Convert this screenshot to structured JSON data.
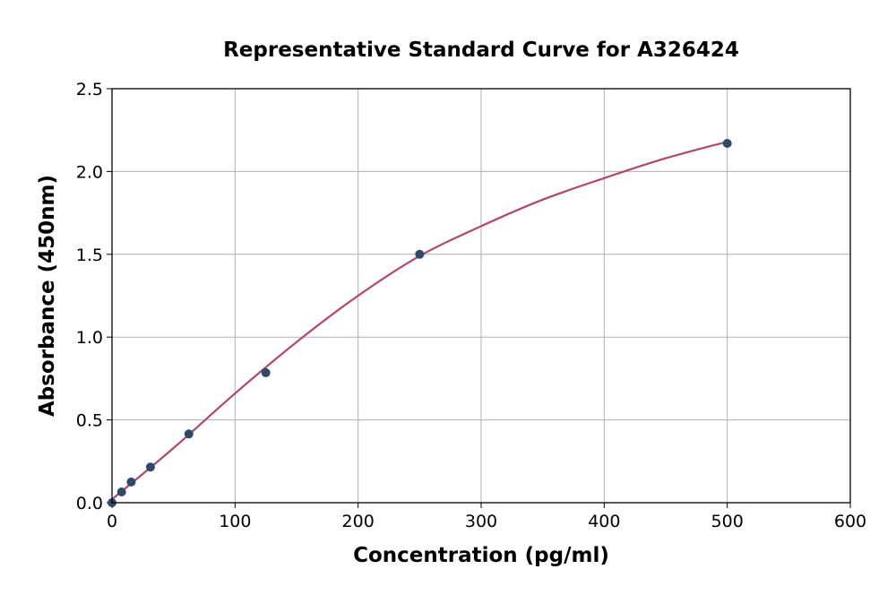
{
  "chart_data": {
    "type": "scatter",
    "title": "Representative Standard Curve for A326424",
    "xlabel": "Concentration (pg/ml)",
    "ylabel": "Absorbance (450nm)",
    "xlim": [
      0,
      600
    ],
    "ylim": [
      0,
      2.5
    ],
    "xticks": [
      "0",
      "100",
      "200",
      "300",
      "400",
      "500",
      "600"
    ],
    "yticks": [
      "0.0",
      "0.5",
      "1.0",
      "1.5",
      "2.0",
      "2.5"
    ],
    "grid": true,
    "legend": "none",
    "points": {
      "x": [
        0,
        7.8,
        15.6,
        31.25,
        62.5,
        125,
        250,
        500
      ],
      "y": [
        0.0,
        0.065,
        0.125,
        0.215,
        0.415,
        0.785,
        1.5,
        2.17
      ],
      "color": "#2e4a6b"
    },
    "fit_curve": {
      "x": [
        0,
        50,
        100,
        150,
        200,
        250,
        300,
        350,
        400,
        450,
        500
      ],
      "y": [
        0.02,
        0.33,
        0.66,
        0.97,
        1.25,
        1.49,
        1.67,
        1.83,
        1.96,
        2.08,
        2.18
      ],
      "color": "#b5466b"
    }
  }
}
